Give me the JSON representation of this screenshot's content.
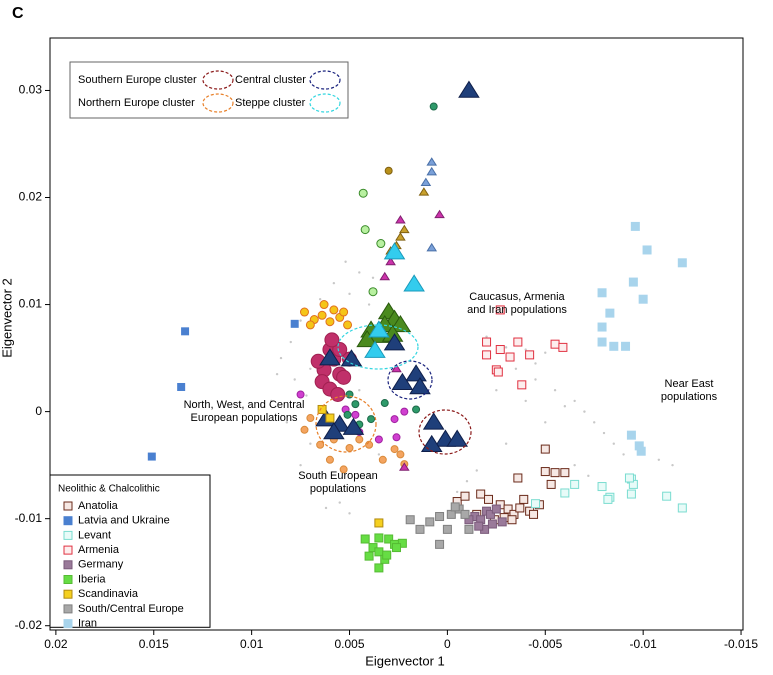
{
  "chart_data": {
    "type": "scatter",
    "panel_label": "C",
    "x_label": "Eigenvector 1",
    "y_label": "Eigenvector 2",
    "xlim": [
      0.0203,
      -0.0151
    ],
    "ylim": [
      -0.0204,
      0.0349
    ],
    "xticks": [
      0.02,
      0.015,
      0.01,
      0.005,
      0,
      -0.005,
      -0.01,
      -0.015
    ],
    "yticks": [
      -0.02,
      -0.01,
      0,
      0.01,
      0.02,
      0.03
    ],
    "legend_title": "Neolithic & Chalcolithic",
    "legend_position": "lower left",
    "clusters": [
      {
        "name": "Southern Europe cluster",
        "color": "#8b1a1a"
      },
      {
        "name": "Central cluster",
        "color": "#1a237e"
      },
      {
        "name": "Northern Europe cluster",
        "color": "#e8802a"
      },
      {
        "name": "Steppe cluster",
        "color": "#33d6e0"
      }
    ],
    "annotations": [
      {
        "text": [
          "Caucasus, Armenia",
          "and Iran populations"
        ]
      },
      {
        "text": [
          "Near East",
          "populations"
        ]
      },
      {
        "text": [
          "North, West, and  Central",
          "European populations"
        ]
      },
      {
        "text": [
          "South European",
          "populations"
        ]
      }
    ],
    "series": [
      {
        "color": "#c8c8c8",
        "marker": "dot",
        "size": 1.2,
        "x": [
          0.0045,
          0.005,
          0.0058,
          0.004,
          0.0065,
          0.0075,
          0.008,
          0.0085,
          0.0078,
          0.009,
          0.0082,
          0.007,
          0.0075,
          0.006,
          0.0055,
          0.005,
          0.004,
          0.0035,
          0.0045,
          0.003,
          0.0025,
          0.007,
          0.0072,
          0.0087,
          0.0048,
          0.0062,
          0.0052,
          0.0038,
          -0.002,
          -0.003,
          -0.004,
          -0.005,
          -0.0035,
          -0.0045,
          -0.0025,
          -0.004,
          -0.0055,
          -0.006,
          -0.007,
          -0.0075,
          -0.008,
          -0.0085,
          -0.009,
          -0.01,
          -0.0108,
          -0.0115,
          -0.0095,
          -0.0065,
          -0.005,
          -0.003,
          -0.0015,
          -0.001,
          -0.0005,
          -0.0065,
          -0.0072,
          -0.0045
        ],
        "y": [
          0.013,
          0.011,
          0.012,
          0.01,
          0.0105,
          0.0085,
          0.0065,
          0.005,
          0.003,
          0.001,
          -0.001,
          -0.003,
          -0.005,
          -0.007,
          -0.0085,
          -0.0095,
          -0.006,
          -0.004,
          0.002,
          0.006,
          0.004,
          0.004,
          0.0015,
          0.0035,
          -0.0075,
          -0.009,
          0.014,
          0.0125,
          0.007,
          0.006,
          0.0058,
          0.0055,
          0.004,
          0.003,
          0.002,
          0.001,
          0.002,
          0.0005,
          0,
          -0.001,
          -0.002,
          -0.003,
          -0.004,
          -0.0035,
          -0.0045,
          -0.005,
          -0.002,
          0.001,
          -0.001,
          -0.003,
          -0.0055,
          -0.0065,
          -0.0075,
          -0.005,
          -0.006,
          0.0045
        ]
      },
      {
        "color": "#f4a460",
        "edgecolor": "#d98a3a",
        "marker": "circle",
        "size": 3.5,
        "x": [
          0.0073,
          0.0065,
          0.0058,
          0.005,
          0.0045,
          0.004,
          0.0033,
          0.0027,
          0.0022,
          0.0053,
          0.006,
          0.007,
          0.0024
        ],
        "y": [
          -0.0017,
          -0.0031,
          -0.0026,
          -0.0034,
          -0.0026,
          -0.0031,
          -0.0045,
          -0.0035,
          -0.0049,
          -0.0054,
          -0.0045,
          -0.0006,
          -0.004
        ]
      },
      {
        "color": "#f5c518",
        "edgecolor": "#e07020",
        "marker": "circle",
        "size": 4,
        "x": [
          0.0073,
          0.0068,
          0.0064,
          0.006,
          0.0055,
          0.0051,
          0.007,
          0.0058,
          0.0063,
          0.0053
        ],
        "y": [
          0.0093,
          0.0086,
          0.009,
          0.0084,
          0.0088,
          0.0081,
          0.0081,
          0.0095,
          0.01,
          0.0093
        ]
      },
      {
        "color": "#c0306a",
        "edgecolor": "#a02050",
        "marker": "circle",
        "size": 7,
        "x": [
          0.006,
          0.0058,
          0.0063,
          0.0055,
          0.0064,
          0.0053,
          0.006,
          0.0056,
          0.005,
          0.0066,
          0.0055,
          0.0059
        ],
        "y": [
          0.0058,
          0.0049,
          0.0039,
          0.0035,
          0.0028,
          0.0032,
          0.0021,
          0.0016,
          0.0049,
          0.0047,
          0.0058,
          0.0067
        ]
      },
      {
        "color": "#d040d0",
        "edgecolor": "#a020a0",
        "marker": "circle",
        "size": 3.5,
        "x": [
          0.0075,
          0.0052,
          0.0047,
          0.0027,
          0.0022,
          0.0026,
          0.0035,
          0.0045
        ],
        "y": [
          0.0016,
          0.0002,
          -0.0003,
          -0.0007,
          0,
          -0.0024,
          -0.0026,
          -0.0019
        ]
      },
      {
        "color": "#2e9a6a",
        "edgecolor": "#1e6a4a",
        "marker": "circle",
        "size": 3.5,
        "x": [
          0.0007,
          0.005,
          0.0047,
          0.0051,
          0.0039,
          0.0045,
          0.0032,
          0.0016
        ],
        "y": [
          0.0285,
          0.0016,
          0.0007,
          -0.0003,
          -0.0007,
          -0.0012,
          0.0008,
          0.0002
        ]
      },
      {
        "color": "#b8f0a0",
        "edgecolor": "#3a8a2a",
        "marker": "circle",
        "size": 4,
        "x": [
          0.0043,
          0.0042,
          0.0034,
          0.0038
        ],
        "y": [
          0.0204,
          0.017,
          0.0157,
          0.0112
        ]
      },
      {
        "color": "#b8901a",
        "edgecolor": "#806010",
        "marker": "circle",
        "size": 3.5,
        "x": [
          0.003
        ],
        "y": [
          0.0225
        ]
      },
      {
        "color": "#c8a02c",
        "edgecolor": "#806010",
        "marker": "triangle",
        "size": 4,
        "x": [
          0.0012,
          0.0022,
          0.0024,
          0.0026,
          0.0029
        ],
        "y": [
          0.0205,
          0.017,
          0.0163,
          0.0155,
          0.015
        ]
      },
      {
        "color": "#cc33aa",
        "edgecolor": "#802070",
        "marker": "triangle",
        "size": 4,
        "x": [
          0.0024,
          0.0004,
          0.0029,
          0.0032,
          0.0026,
          0.0022
        ],
        "y": [
          0.0179,
          0.0184,
          0.014,
          0.0126,
          0.004,
          -0.0052
        ]
      },
      {
        "color": "#7aa0d8",
        "edgecolor": "#4a70a8",
        "marker": "triangle",
        "size": 4,
        "x": [
          0.0008,
          0.0008,
          0.0011,
          0.0008
        ],
        "y": [
          0.0233,
          0.0224,
          0.0214,
          0.0153
        ]
      },
      {
        "color": "#4a8a1e",
        "edgecolor": "#2a5a0e",
        "marker": "triangle",
        "size": 9,
        "x": [
          0.003,
          0.0027,
          0.0032,
          0.0035,
          0.0039,
          0.0041,
          0.0024,
          0.0028
        ],
        "y": [
          0.0093,
          0.0086,
          0.0081,
          0.0071,
          0.0076,
          0.0067,
          0.0081,
          0.0072
        ]
      },
      {
        "color": "#33ccee",
        "edgecolor": "#1a9abb",
        "marker": "triangle",
        "size": 9,
        "x": [
          0.0027,
          0.0017,
          0.0035,
          0.0037
        ],
        "y": [
          0.0149,
          0.0119,
          0.0076,
          0.0057
        ]
      },
      {
        "color": "#1f3f7a",
        "edgecolor": "#0f1f4a",
        "marker": "triangle",
        "size": 9,
        "x": [
          -0.0011,
          0.0027,
          0.0049,
          0.006,
          0.0016,
          0.0023,
          0.0014,
          0.0062,
          0.0055,
          0.0048,
          0.0058,
          0.0007,
          0.0001,
          -0.0005,
          0.0008
        ],
        "y": [
          0.03,
          0.0064,
          0.0049,
          0.005,
          0.0035,
          0.0027,
          0.0023,
          -0.0007,
          -0.0012,
          -0.0015,
          -0.0019,
          -0.001,
          -0.0026,
          -0.0026,
          -0.0031
        ]
      },
      {
        "name": "Anatolia",
        "color": "#f6e8e4",
        "edgecolor": "#6a2a1a",
        "marker": "square",
        "size": 4,
        "x": [
          -0.0017,
          -0.0021,
          -0.0027,
          -0.0031,
          -0.0034,
          -0.0037,
          -0.0039,
          -0.0042,
          -0.0047,
          -0.0036,
          -0.005,
          -0.005,
          -0.0053,
          -0.0055,
          -0.006,
          -0.0015,
          -0.0024,
          -0.0029,
          -0.0033,
          -0.0044,
          -0.0005,
          -0.0009
        ],
        "y": [
          -0.0077,
          -0.0082,
          -0.0087,
          -0.0091,
          -0.0096,
          -0.009,
          -0.0082,
          -0.0093,
          -0.0087,
          -0.0062,
          -0.0035,
          -0.0056,
          -0.0068,
          -0.0057,
          -0.0057,
          -0.0096,
          -0.0101,
          -0.0099,
          -0.0101,
          -0.0096,
          -0.0084,
          -0.0079
        ]
      },
      {
        "name": "Latvia  and Ukraine",
        "color": "#4a80d0",
        "edgecolor": "#4a80d0",
        "marker": "square",
        "size": 3.5,
        "x": [
          0.0078,
          0.0134,
          0.0136,
          0.0151
        ],
        "y": [
          0.0082,
          0.0075,
          0.0023,
          -0.0042
        ]
      },
      {
        "name": "Levant",
        "color": "#e8fbf8",
        "edgecolor": "#7adcd0",
        "marker": "square",
        "size": 4,
        "x": [
          -0.006,
          -0.0065,
          -0.0079,
          -0.0083,
          -0.0082,
          -0.0094,
          -0.0094,
          -0.0095,
          -0.0093,
          -0.0112,
          -0.012,
          -0.0045
        ],
        "y": [
          -0.0076,
          -0.0068,
          -0.007,
          -0.008,
          -0.0082,
          -0.0063,
          -0.0077,
          -0.0068,
          -0.0062,
          -0.0079,
          -0.009,
          -0.0086
        ]
      },
      {
        "name": "Armenia",
        "color": "#fdeeee",
        "edgecolor": "#e03040",
        "marker": "square",
        "size": 4,
        "x": [
          -0.0027,
          -0.002,
          -0.0027,
          -0.0036,
          -0.0042,
          -0.0055,
          -0.0059,
          -0.0025,
          -0.0038,
          -0.002,
          -0.0032,
          -0.0026
        ],
        "y": [
          0.0095,
          0.0065,
          0.0058,
          0.0065,
          0.0053,
          0.0063,
          0.006,
          0.0039,
          0.0025,
          0.0053,
          0.0051,
          0.0037
        ]
      },
      {
        "name": "Germany",
        "color": "#9a7a9a",
        "edgecolor": "#7a5a7a",
        "marker": "square",
        "size": 4,
        "x": [
          -0.0014,
          -0.0017,
          -0.002,
          -0.0022,
          -0.0025,
          -0.0028,
          -0.0019,
          -0.0011,
          -0.0023,
          -0.0016
        ],
        "y": [
          -0.0098,
          -0.0101,
          -0.0093,
          -0.0096,
          -0.0091,
          -0.0103,
          -0.011,
          -0.0101,
          -0.0105,
          -0.0107
        ]
      },
      {
        "name": "Iberia",
        "color": "#66dd44",
        "edgecolor": "#55bb33",
        "marker": "square",
        "size": 4,
        "x": [
          0.0042,
          0.0038,
          0.0035,
          0.003,
          0.0027,
          0.0023,
          0.0032,
          0.0035,
          0.0031,
          0.004,
          0.0026,
          0.0035
        ],
        "y": [
          -0.0119,
          -0.0127,
          -0.0131,
          -0.0119,
          -0.0124,
          -0.0123,
          -0.0138,
          -0.0146,
          -0.0134,
          -0.0135,
          -0.0127,
          -0.0118
        ]
      },
      {
        "name": "Scandinavia",
        "color": "#f5d020",
        "edgecolor": "#b08a10",
        "marker": "square",
        "size": 4,
        "x": [
          0.0035,
          0.0064,
          0.006
        ],
        "y": [
          -0.0104,
          0.0002,
          -0.0006
        ]
      },
      {
        "name": "South/Central Europe",
        "color": "#a8a8a8",
        "edgecolor": "#808080",
        "marker": "square",
        "size": 4,
        "x": [
          0.0004,
          -0.0002,
          -0.0006,
          0.0014,
          0.0019,
          0.0004,
          0,
          -0.0004,
          -0.0011,
          -0.0009,
          0.0009
        ],
        "y": [
          -0.0098,
          -0.0096,
          -0.0091,
          -0.011,
          -0.0101,
          -0.0124,
          -0.011,
          -0.0089,
          -0.011,
          -0.0096,
          -0.0103
        ]
      },
      {
        "name": "Iran",
        "color": "#a8d4ec",
        "edgecolor": "#a8d4ec",
        "marker": "square",
        "size": 4,
        "x": [
          -0.0096,
          -0.0102,
          -0.012,
          -0.0079,
          -0.0095,
          -0.01,
          -0.0083,
          -0.0079,
          -0.0079,
          -0.0085,
          -0.0091,
          -0.0094,
          -0.0098,
          -0.0099
        ],
        "y": [
          0.0173,
          0.0151,
          0.0139,
          0.0111,
          0.0121,
          0.0105,
          0.0092,
          0.0079,
          0.0065,
          0.0061,
          0.0061,
          -0.0022,
          -0.0032,
          -0.0037
        ]
      }
    ]
  }
}
